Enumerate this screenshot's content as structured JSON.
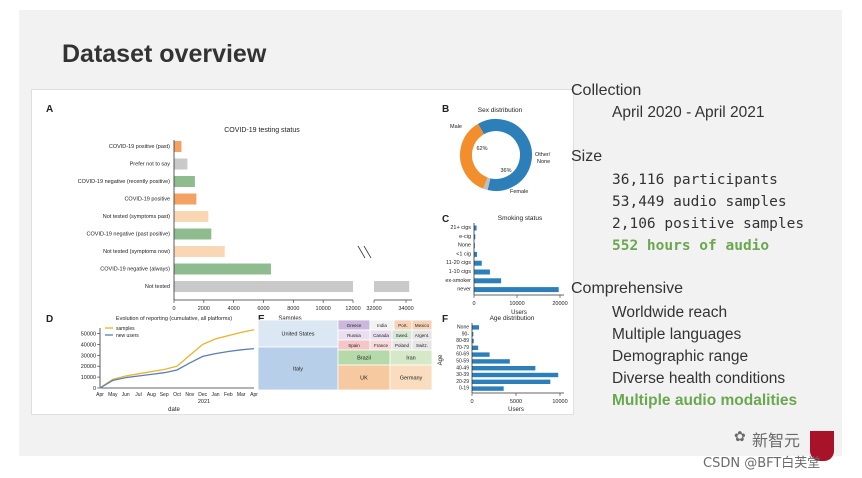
{
  "slide": {
    "title": "Dataset overview"
  },
  "figure": {
    "panelA": {
      "letter": "A",
      "title": "COVID-19 testing status",
      "xlabel": "Samples",
      "categories": [
        "COVID-19 positive (past)",
        "Prefer not to say",
        "COVID-19 negative (recently positive)",
        "COVID-19 positive",
        "Not tested (symptoms past)",
        "COVID-19 negative (past positive)",
        "Not tested (symptoms now)",
        "COVID-19 negative (always)",
        "Not tested"
      ],
      "values": [
        500,
        900,
        1400,
        1500,
        2300,
        2500,
        3400,
        6500,
        34200
      ],
      "colors": [
        "#f4a261",
        "#c9c9c9",
        "#8fbc8f",
        "#f4a261",
        "#f9d7b5",
        "#8fbc8f",
        "#f9d7b5",
        "#8fbc8f",
        "#c9c9c9"
      ],
      "ticks": [
        "0",
        "2000",
        "4000",
        "6000",
        "8000",
        "10000",
        "12000",
        "32000",
        "34000"
      ]
    },
    "panelB": {
      "letter": "B",
      "title": "Sex distribution",
      "labels": [
        "Male",
        "Other/ None",
        "Female"
      ],
      "pcts": [
        "62%",
        "36%"
      ],
      "values": [
        62,
        2,
        36
      ],
      "colors": [
        "#2c7fb8",
        "#bfbfbf",
        "#f28e2b"
      ]
    },
    "panelC": {
      "letter": "C",
      "title": "Smoking status",
      "xlabel": "Users",
      "categories": [
        "21+ cigs",
        "e-cig",
        "None",
        "<1 cig",
        "11-20 cigs",
        "1-10 cigs",
        "ex-smoker",
        "never"
      ],
      "values": [
        600,
        300,
        200,
        700,
        1800,
        3700,
        6300,
        19700
      ],
      "ticks": [
        "0",
        "10000",
        "20000"
      ]
    },
    "panelD": {
      "letter": "D",
      "title": "Evolution of reporting (cumulative, all platforms)",
      "xlabel": "date",
      "year": "2021",
      "legend": [
        "samples",
        "new users"
      ],
      "months": [
        "Apr",
        "May",
        "Jun",
        "Jul",
        "Aug",
        "Sep",
        "Oct",
        "Nov",
        "Dec",
        "Jan",
        "Feb",
        "Mar",
        "Apr"
      ],
      "yticks": [
        "0",
        "10000",
        "20000",
        "30000",
        "40000",
        "50000"
      ],
      "samples": [
        0,
        8000,
        11000,
        13000,
        15000,
        17000,
        20000,
        30000,
        40000,
        45000,
        48000,
        51000,
        53449
      ],
      "users": [
        0,
        7000,
        9500,
        11000,
        12500,
        14000,
        16500,
        23000,
        29000,
        31500,
        33500,
        35000,
        36116
      ]
    },
    "panelE": {
      "letter": "E",
      "cells": [
        "United States",
        "Italy",
        "Greece",
        "India",
        "Port.",
        "Mexico",
        "Russia",
        "Canada",
        "Swed.",
        "Argent.",
        "Spain",
        "France",
        "Poland",
        "Switz.",
        "Brazil",
        "Iran",
        "UK",
        "Germany"
      ]
    },
    "panelF": {
      "letter": "F",
      "title": "Age distribution",
      "xlabel": "Users",
      "ylabel": "Age",
      "categories": [
        "None",
        "90-",
        "80-89",
        "70-79",
        "60-69",
        "50-59",
        "40-49",
        "30-39",
        "20-29",
        "0-19"
      ],
      "values": [
        800,
        150,
        200,
        700,
        2000,
        4300,
        7200,
        9800,
        8900,
        3600
      ],
      "ticks": [
        "0",
        "5000",
        "10000"
      ]
    }
  },
  "right": {
    "collection_heading": "Collection",
    "collection_dates": "April 2020 - April 2021",
    "size_heading": "Size",
    "size_items": [
      "36,116 participants",
      "53,449 audio samples",
      "2,106 positive samples"
    ],
    "size_highlight": "552 hours of audio",
    "comprehensive_heading": "Comprehensive",
    "comprehensive_items": [
      "Worldwide reach",
      "Multiple languages",
      "Demographic range",
      "Diverse health conditions"
    ],
    "comprehensive_highlight": "Multiple audio modalities"
  },
  "watermark": {
    "wechat": "新智元",
    "csdn": "CSDN @BFT白芙堂"
  }
}
